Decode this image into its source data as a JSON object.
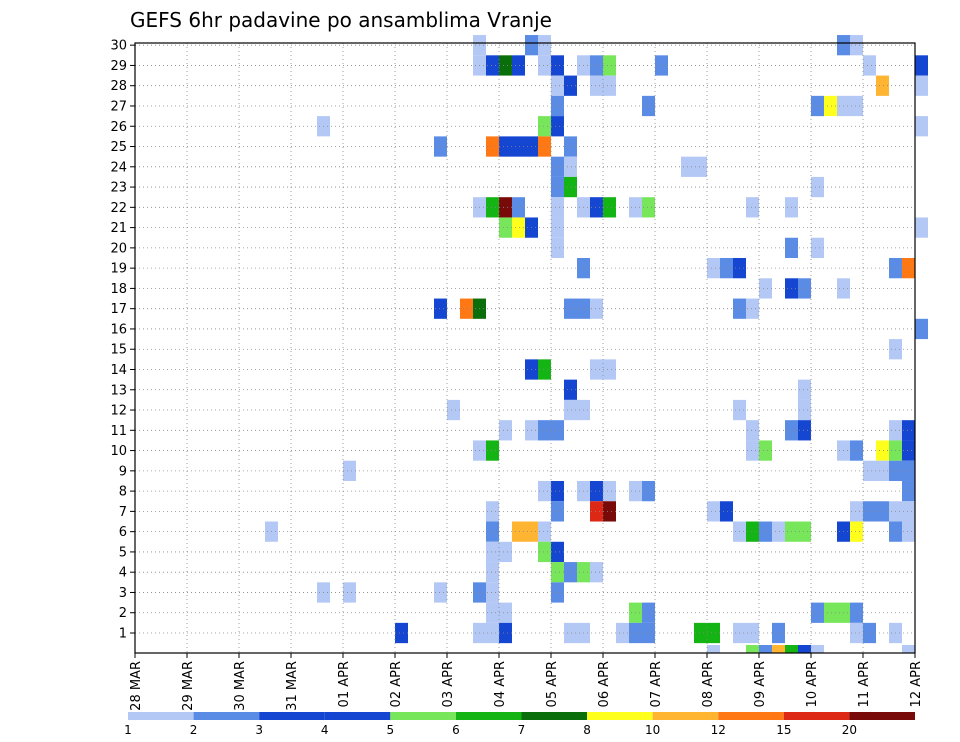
{
  "chart_data": {
    "type": "heatmap",
    "title": "GEFS 6hr padavine po ansamblima Vranje",
    "xlabel": "",
    "ylabel": "",
    "x_time_step": "6hr",
    "x_ticks": [
      "28 MAR",
      "29 MAR",
      "30 MAR",
      "31 MAR",
      "01 APR",
      "02 APR",
      "03 APR",
      "04 APR",
      "05 APR",
      "06 APR",
      "07 APR",
      "08 APR",
      "09 APR",
      "10 APR",
      "11 APR",
      "12 APR"
    ],
    "y_ticks": [
      "1",
      "2",
      "3",
      "4",
      "5",
      "6",
      "7",
      "8",
      "9",
      "10",
      "11",
      "12",
      "13",
      "14",
      "15",
      "16",
      "17",
      "18",
      "19",
      "20",
      "21",
      "22",
      "23",
      "24",
      "25",
      "26",
      "27",
      "28",
      "29",
      "30"
    ],
    "ylim": [
      0,
      30
    ],
    "grid": true,
    "colorbar": {
      "labels": [
        "1",
        "2",
        "3",
        "4",
        "5",
        "6",
        "7",
        "8",
        "10",
        "12",
        "15",
        "20"
      ],
      "colors": [
        "#b4c8f5",
        "#5a8ce6",
        "#1446d2",
        "#1446d2",
        "#78e65a",
        "#14b414",
        "#0a6e0a",
        "#ffff1e",
        "#ffb432",
        "#ff7814",
        "#dc2814",
        "#780a0a"
      ]
    },
    "cells": [
      {
        "x": "03 APR 12Z",
        "y": 30,
        "v": 1
      },
      {
        "x": "04 APR 12Z",
        "y": 30,
        "v": 2
      },
      {
        "x": "04 APR 18Z",
        "y": 30,
        "v": 1
      },
      {
        "x": "10 APR 12Z",
        "y": 30,
        "v": 2
      },
      {
        "x": "10 APR 18Z",
        "y": 30,
        "v": 1
      },
      {
        "x": "03 APR 12Z",
        "y": 29,
        "v": 1
      },
      {
        "x": "03 APR 18Z",
        "y": 29,
        "v": 3
      },
      {
        "x": "04 APR 00Z",
        "y": 29,
        "v": 7
      },
      {
        "x": "04 APR 06Z",
        "y": 29,
        "v": 4
      },
      {
        "x": "04 APR 18Z",
        "y": 29,
        "v": 1
      },
      {
        "x": "05 APR 00Z",
        "y": 29,
        "v": 4
      },
      {
        "x": "05 APR 12Z",
        "y": 29,
        "v": 1
      },
      {
        "x": "05 APR 18Z",
        "y": 29,
        "v": 2
      },
      {
        "x": "06 APR 00Z",
        "y": 29,
        "v": 5
      },
      {
        "x": "07 APR 00Z",
        "y": 29,
        "v": 2
      },
      {
        "x": "11 APR 00Z",
        "y": 29,
        "v": 1
      },
      {
        "x": "12 APR 00Z",
        "y": 29,
        "v": 4
      },
      {
        "x": "05 APR 00Z",
        "y": 28,
        "v": 1
      },
      {
        "x": "05 APR 06Z",
        "y": 28,
        "v": 3
      },
      {
        "x": "05 APR 18Z",
        "y": 28,
        "v": 1
      },
      {
        "x": "06 APR 00Z",
        "y": 28,
        "v": 1
      },
      {
        "x": "11 APR 06Z",
        "y": 28,
        "v": 10
      },
      {
        "x": "12 APR 00Z",
        "y": 28,
        "v": 1
      },
      {
        "x": "05 APR 00Z",
        "y": 27,
        "v": 2
      },
      {
        "x": "06 APR 18Z",
        "y": 27,
        "v": 2
      },
      {
        "x": "10 APR 00Z",
        "y": 27,
        "v": 2
      },
      {
        "x": "10 APR 06Z",
        "y": 27,
        "v": 8
      },
      {
        "x": "10 APR 12Z",
        "y": 27,
        "v": 1
      },
      {
        "x": "10 APR 18Z",
        "y": 27,
        "v": 1
      },
      {
        "x": "31 MAR 12Z",
        "y": 26,
        "v": 1
      },
      {
        "x": "04 APR 18Z",
        "y": 26,
        "v": 5
      },
      {
        "x": "05 APR 00Z",
        "y": 26,
        "v": 3
      },
      {
        "x": "12 APR 00Z",
        "y": 26,
        "v": 1
      },
      {
        "x": "02 APR 18Z",
        "y": 25,
        "v": 2
      },
      {
        "x": "03 APR 18Z",
        "y": 25,
        "v": 12
      },
      {
        "x": "04 APR 00Z",
        "y": 25,
        "v": 4
      },
      {
        "x": "04 APR 06Z",
        "y": 25,
        "v": 4
      },
      {
        "x": "04 APR 12Z",
        "y": 25,
        "v": 3
      },
      {
        "x": "04 APR 18Z",
        "y": 25,
        "v": 12
      },
      {
        "x": "05 APR 06Z",
        "y": 25,
        "v": 2
      },
      {
        "x": "05 APR 00Z",
        "y": 24,
        "v": 2
      },
      {
        "x": "05 APR 06Z",
        "y": 24,
        "v": 1
      },
      {
        "x": "07 APR 12Z",
        "y": 24,
        "v": 1
      },
      {
        "x": "07 APR 18Z",
        "y": 24,
        "v": 1
      },
      {
        "x": "05 APR 00Z",
        "y": 23,
        "v": 2
      },
      {
        "x": "05 APR 06Z",
        "y": 23,
        "v": 6
      },
      {
        "x": "10 APR 00Z",
        "y": 23,
        "v": 1
      },
      {
        "x": "03 APR 12Z",
        "y": 22,
        "v": 1
      },
      {
        "x": "03 APR 18Z",
        "y": 22,
        "v": 6
      },
      {
        "x": "04 APR 00Z",
        "y": 22,
        "v": 20
      },
      {
        "x": "04 APR 06Z",
        "y": 22,
        "v": 2
      },
      {
        "x": "05 APR 00Z",
        "y": 22,
        "v": 1
      },
      {
        "x": "05 APR 12Z",
        "y": 22,
        "v": 1
      },
      {
        "x": "05 APR 18Z",
        "y": 22,
        "v": 3
      },
      {
        "x": "06 APR 00Z",
        "y": 22,
        "v": 6
      },
      {
        "x": "06 APR 12Z",
        "y": 22,
        "v": 1
      },
      {
        "x": "06 APR 18Z",
        "y": 22,
        "v": 5
      },
      {
        "x": "08 APR 18Z",
        "y": 22,
        "v": 1
      },
      {
        "x": "09 APR 12Z",
        "y": 22,
        "v": 1
      },
      {
        "x": "04 APR 00Z",
        "y": 21,
        "v": 5
      },
      {
        "x": "04 APR 06Z",
        "y": 21,
        "v": 8
      },
      {
        "x": "04 APR 12Z",
        "y": 21,
        "v": 3
      },
      {
        "x": "05 APR 00Z",
        "y": 21,
        "v": 1
      },
      {
        "x": "12 APR 00Z",
        "y": 21,
        "v": 1
      },
      {
        "x": "05 APR 00Z",
        "y": 20,
        "v": 1
      },
      {
        "x": "09 APR 12Z",
        "y": 20,
        "v": 2
      },
      {
        "x": "10 APR 00Z",
        "y": 20,
        "v": 1
      },
      {
        "x": "05 APR 12Z",
        "y": 19,
        "v": 2
      },
      {
        "x": "08 APR 00Z",
        "y": 19,
        "v": 1
      },
      {
        "x": "08 APR 06Z",
        "y": 19,
        "v": 2
      },
      {
        "x": "08 APR 12Z",
        "y": 19,
        "v": 3
      },
      {
        "x": "11 APR 12Z",
        "y": 19,
        "v": 2
      },
      {
        "x": "11 APR 18Z",
        "y": 19,
        "v": 12
      },
      {
        "x": "09 APR 00Z",
        "y": 18,
        "v": 1
      },
      {
        "x": "09 APR 12Z",
        "y": 18,
        "v": 3
      },
      {
        "x": "09 APR 18Z",
        "y": 18,
        "v": 2
      },
      {
        "x": "10 APR 12Z",
        "y": 18,
        "v": 1
      },
      {
        "x": "02 APR 18Z",
        "y": 17,
        "v": 3
      },
      {
        "x": "03 APR 06Z",
        "y": 17,
        "v": 12
      },
      {
        "x": "03 APR 12Z",
        "y": 17,
        "v": 7
      },
      {
        "x": "05 APR 06Z",
        "y": 17,
        "v": 2
      },
      {
        "x": "05 APR 12Z",
        "y": 17,
        "v": 2
      },
      {
        "x": "05 APR 18Z",
        "y": 17,
        "v": 1
      },
      {
        "x": "08 APR 12Z",
        "y": 17,
        "v": 2
      },
      {
        "x": "08 APR 18Z",
        "y": 17,
        "v": 1
      },
      {
        "x": "12 APR 00Z",
        "y": 16,
        "v": 2
      },
      {
        "x": "11 APR 12Z",
        "y": 15,
        "v": 1
      },
      {
        "x": "04 APR 12Z",
        "y": 14,
        "v": 3
      },
      {
        "x": "04 APR 18Z",
        "y": 14,
        "v": 6
      },
      {
        "x": "05 APR 18Z",
        "y": 14,
        "v": 1
      },
      {
        "x": "06 APR 00Z",
        "y": 14,
        "v": 1
      },
      {
        "x": "05 APR 06Z",
        "y": 13,
        "v": 3
      },
      {
        "x": "09 APR 18Z",
        "y": 13,
        "v": 1
      },
      {
        "x": "03 APR 00Z",
        "y": 12,
        "v": 1
      },
      {
        "x": "05 APR 06Z",
        "y": 12,
        "v": 1
      },
      {
        "x": "05 APR 12Z",
        "y": 12,
        "v": 1
      },
      {
        "x": "08 APR 12Z",
        "y": 12,
        "v": 1
      },
      {
        "x": "09 APR 18Z",
        "y": 12,
        "v": 1
      },
      {
        "x": "04 APR 00Z",
        "y": 11,
        "v": 1
      },
      {
        "x": "04 APR 12Z",
        "y": 11,
        "v": 1
      },
      {
        "x": "04 APR 18Z",
        "y": 11,
        "v": 2
      },
      {
        "x": "05 APR 00Z",
        "y": 11,
        "v": 2
      },
      {
        "x": "08 APR 18Z",
        "y": 11,
        "v": 1
      },
      {
        "x": "09 APR 12Z",
        "y": 11,
        "v": 2
      },
      {
        "x": "09 APR 18Z",
        "y": 11,
        "v": 3
      },
      {
        "x": "11 APR 12Z",
        "y": 11,
        "v": 1
      },
      {
        "x": "11 APR 18Z",
        "y": 11,
        "v": 3
      },
      {
        "x": "03 APR 12Z",
        "y": 10,
        "v": 1
      },
      {
        "x": "03 APR 18Z",
        "y": 10,
        "v": 6
      },
      {
        "x": "08 APR 18Z",
        "y": 10,
        "v": 1
      },
      {
        "x": "09 APR 00Z",
        "y": 10,
        "v": 5
      },
      {
        "x": "10 APR 12Z",
        "y": 10,
        "v": 1
      },
      {
        "x": "10 APR 18Z",
        "y": 10,
        "v": 2
      },
      {
        "x": "11 APR 06Z",
        "y": 10,
        "v": 8
      },
      {
        "x": "11 APR 12Z",
        "y": 10,
        "v": 5
      },
      {
        "x": "11 APR 18Z",
        "y": 10,
        "v": 3
      },
      {
        "x": "01 APR 00Z",
        "y": 9,
        "v": 1
      },
      {
        "x": "11 APR 00Z",
        "y": 9,
        "v": 1
      },
      {
        "x": "11 APR 06Z",
        "y": 9,
        "v": 1
      },
      {
        "x": "11 APR 12Z",
        "y": 9,
        "v": 2
      },
      {
        "x": "11 APR 18Z",
        "y": 9,
        "v": 2
      },
      {
        "x": "04 APR 18Z",
        "y": 8,
        "v": 1
      },
      {
        "x": "05 APR 00Z",
        "y": 8,
        "v": 3
      },
      {
        "x": "05 APR 12Z",
        "y": 8,
        "v": 1
      },
      {
        "x": "05 APR 18Z",
        "y": 8,
        "v": 3
      },
      {
        "x": "06 APR 00Z",
        "y": 8,
        "v": 1
      },
      {
        "x": "06 APR 12Z",
        "y": 8,
        "v": 1
      },
      {
        "x": "06 APR 18Z",
        "y": 8,
        "v": 2
      },
      {
        "x": "11 APR 18Z",
        "y": 8,
        "v": 2
      },
      {
        "x": "03 APR 18Z",
        "y": 7,
        "v": 1
      },
      {
        "x": "05 APR 00Z",
        "y": 7,
        "v": 2
      },
      {
        "x": "05 APR 18Z",
        "y": 7,
        "v": 15
      },
      {
        "x": "06 APR 00Z",
        "y": 7,
        "v": 20
      },
      {
        "x": "08 APR 00Z",
        "y": 7,
        "v": 1
      },
      {
        "x": "08 APR 06Z",
        "y": 7,
        "v": 3
      },
      {
        "x": "10 APR 18Z",
        "y": 7,
        "v": 1
      },
      {
        "x": "11 APR 00Z",
        "y": 7,
        "v": 2
      },
      {
        "x": "11 APR 06Z",
        "y": 7,
        "v": 2
      },
      {
        "x": "11 APR 12Z",
        "y": 7,
        "v": 1
      },
      {
        "x": "11 APR 18Z",
        "y": 7,
        "v": 1
      },
      {
        "x": "30 MAR 12Z",
        "y": 6,
        "v": 1
      },
      {
        "x": "03 APR 18Z",
        "y": 6,
        "v": 2
      },
      {
        "x": "04 APR 06Z",
        "y": 6,
        "v": 10
      },
      {
        "x": "04 APR 12Z",
        "y": 6,
        "v": 10
      },
      {
        "x": "04 APR 18Z",
        "y": 6,
        "v": 1
      },
      {
        "x": "08 APR 12Z",
        "y": 6,
        "v": 1
      },
      {
        "x": "08 APR 18Z",
        "y": 6,
        "v": 6
      },
      {
        "x": "09 APR 00Z",
        "y": 6,
        "v": 2
      },
      {
        "x": "09 APR 06Z",
        "y": 6,
        "v": 1
      },
      {
        "x": "09 APR 12Z",
        "y": 6,
        "v": 5
      },
      {
        "x": "09 APR 18Z",
        "y": 6,
        "v": 5
      },
      {
        "x": "10 APR 12Z",
        "y": 6,
        "v": 3
      },
      {
        "x": "10 APR 18Z",
        "y": 6,
        "v": 8
      },
      {
        "x": "11 APR 12Z",
        "y": 6,
        "v": 2
      },
      {
        "x": "11 APR 18Z",
        "y": 6,
        "v": 1
      },
      {
        "x": "03 APR 18Z",
        "y": 5,
        "v": 1
      },
      {
        "x": "04 APR 00Z",
        "y": 5,
        "v": 1
      },
      {
        "x": "04 APR 18Z",
        "y": 5,
        "v": 5
      },
      {
        "x": "05 APR 00Z",
        "y": 5,
        "v": 3
      },
      {
        "x": "03 APR 18Z",
        "y": 4,
        "v": 1
      },
      {
        "x": "05 APR 00Z",
        "y": 4,
        "v": 5
      },
      {
        "x": "05 APR 06Z",
        "y": 4,
        "v": 2
      },
      {
        "x": "05 APR 12Z",
        "y": 4,
        "v": 5
      },
      {
        "x": "05 APR 18Z",
        "y": 4,
        "v": 1
      },
      {
        "x": "31 MAR 12Z",
        "y": 3,
        "v": 1
      },
      {
        "x": "01 APR 00Z",
        "y": 3,
        "v": 1
      },
      {
        "x": "02 APR 18Z",
        "y": 3,
        "v": 1
      },
      {
        "x": "03 APR 12Z",
        "y": 3,
        "v": 2
      },
      {
        "x": "03 APR 18Z",
        "y": 3,
        "v": 1
      },
      {
        "x": "05 APR 00Z",
        "y": 3,
        "v": 2
      },
      {
        "x": "03 APR 18Z",
        "y": 2,
        "v": 1
      },
      {
        "x": "04 APR 00Z",
        "y": 2,
        "v": 1
      },
      {
        "x": "06 APR 12Z",
        "y": 2,
        "v": 5
      },
      {
        "x": "06 APR 18Z",
        "y": 2,
        "v": 2
      },
      {
        "x": "10 APR 00Z",
        "y": 2,
        "v": 2
      },
      {
        "x": "10 APR 06Z",
        "y": 2,
        "v": 5
      },
      {
        "x": "10 APR 12Z",
        "y": 2,
        "v": 5
      },
      {
        "x": "10 APR 18Z",
        "y": 2,
        "v": 2
      },
      {
        "x": "02 APR 00Z",
        "y": 1,
        "v": 3
      },
      {
        "x": "03 APR 12Z",
        "y": 1,
        "v": 1
      },
      {
        "x": "03 APR 18Z",
        "y": 1,
        "v": 1
      },
      {
        "x": "04 APR 00Z",
        "y": 1,
        "v": 3
      },
      {
        "x": "05 APR 06Z",
        "y": 1,
        "v": 1
      },
      {
        "x": "05 APR 12Z",
        "y": 1,
        "v": 1
      },
      {
        "x": "06 APR 06Z",
        "y": 1,
        "v": 1
      },
      {
        "x": "06 APR 12Z",
        "y": 1,
        "v": 2
      },
      {
        "x": "06 APR 18Z",
        "y": 1,
        "v": 2
      },
      {
        "x": "07 APR 18Z",
        "y": 1,
        "v": 6
      },
      {
        "x": "08 APR 00Z",
        "y": 1,
        "v": 6
      },
      {
        "x": "08 APR 12Z",
        "y": 1,
        "v": 1
      },
      {
        "x": "08 APR 18Z",
        "y": 1,
        "v": 1
      },
      {
        "x": "09 APR 06Z",
        "y": 1,
        "v": 2
      },
      {
        "x": "10 APR 18Z",
        "y": 1,
        "v": 1
      },
      {
        "x": "11 APR 00Z",
        "y": 1,
        "v": 2
      },
      {
        "x": "11 APR 12Z",
        "y": 1,
        "v": 1
      },
      {
        "x": "08 APR 00Z",
        "y": 0.5,
        "v": 1
      },
      {
        "x": "08 APR 18Z",
        "y": 0.5,
        "v": 5
      },
      {
        "x": "09 APR 00Z",
        "y": 0.5,
        "v": 2
      },
      {
        "x": "09 APR 06Z",
        "y": 0.5,
        "v": 10
      },
      {
        "x": "09 APR 12Z",
        "y": 0.5,
        "v": 6
      },
      {
        "x": "09 APR 18Z",
        "y": 0.5,
        "v": 3
      },
      {
        "x": "10 APR 00Z",
        "y": 0.5,
        "v": 1
      },
      {
        "x": "11 APR 18Z",
        "y": 0.5,
        "v": 1
      }
    ]
  }
}
